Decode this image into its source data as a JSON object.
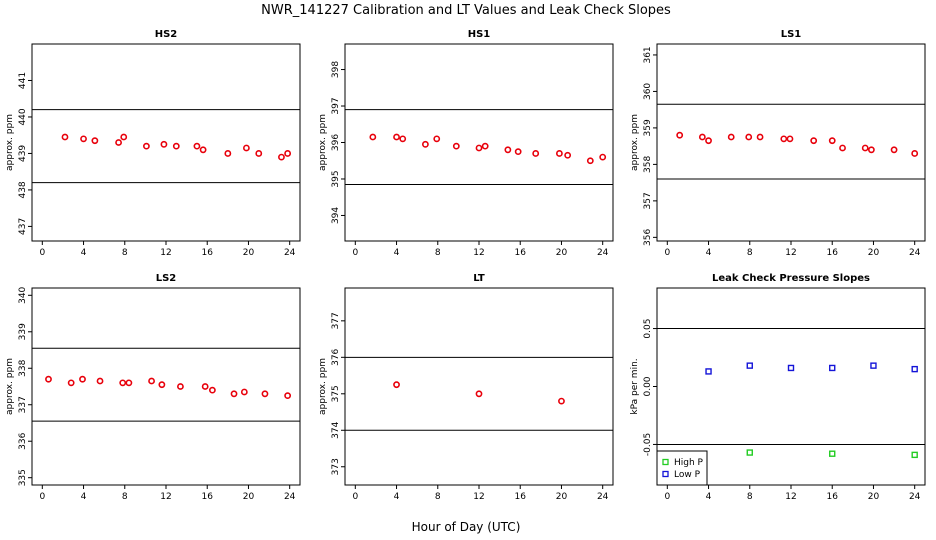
{
  "title": "NWR_141227  Calibration and LT Values and Leak Check Slopes",
  "xlabel": "Hour of Day (UTC)",
  "chart_data": [
    {
      "type": "scatter",
      "title": "HS2",
      "xlabel": "",
      "ylabel": "approx. ppm",
      "xlim": [
        -1,
        25
      ],
      "ylim": [
        436.6,
        442.0
      ],
      "x_ticks": [
        0,
        4,
        8,
        12,
        16,
        20,
        24
      ],
      "x_tick_labels": [
        "0",
        "4",
        "8",
        "12",
        "16",
        "20",
        "24"
      ],
      "y_ticks": [
        437,
        438,
        439,
        440,
        441
      ],
      "y_tick_labels": [
        "437",
        "438",
        "439",
        "440",
        "441"
      ],
      "reference_lines": [
        440.2,
        438.2
      ],
      "color": "#e8000b",
      "series": [
        {
          "x": [
            2.2,
            4.0,
            5.1,
            7.4,
            7.9,
            10.1,
            11.8,
            13.0,
            15.0,
            15.6,
            18.0,
            19.8,
            21.0,
            23.2,
            23.8
          ],
          "y": [
            439.45,
            439.4,
            439.35,
            439.3,
            439.45,
            439.2,
            439.25,
            439.2,
            439.2,
            439.1,
            439.0,
            439.15,
            439.0,
            438.9,
            439.0
          ]
        }
      ]
    },
    {
      "type": "scatter",
      "title": "HS1",
      "xlabel": "",
      "ylabel": "approx. ppm",
      "xlim": [
        -1,
        25
      ],
      "ylim": [
        393.3,
        398.7
      ],
      "x_ticks": [
        0,
        4,
        8,
        12,
        16,
        20,
        24
      ],
      "x_tick_labels": [
        "0",
        "4",
        "8",
        "12",
        "16",
        "20",
        "24"
      ],
      "y_ticks": [
        394,
        395,
        396,
        397,
        398
      ],
      "y_tick_labels": [
        "394",
        "395",
        "396",
        "397",
        "398"
      ],
      "reference_lines": [
        396.9,
        394.85
      ],
      "color": "#e8000b",
      "series": [
        {
          "x": [
            1.7,
            4.0,
            4.6,
            6.8,
            7.9,
            9.8,
            12.0,
            12.6,
            14.8,
            15.8,
            17.5,
            19.8,
            20.6,
            22.8,
            24.0
          ],
          "y": [
            396.15,
            396.15,
            396.1,
            395.95,
            396.1,
            395.9,
            395.85,
            395.9,
            395.8,
            395.75,
            395.7,
            395.7,
            395.65,
            395.5,
            395.6
          ]
        }
      ]
    },
    {
      "type": "scatter",
      "title": "LS1",
      "xlabel": "",
      "ylabel": "approx. ppm",
      "xlim": [
        -1,
        25
      ],
      "ylim": [
        355.9,
        361.3
      ],
      "x_ticks": [
        0,
        4,
        8,
        12,
        16,
        20,
        24
      ],
      "x_tick_labels": [
        "0",
        "4",
        "8",
        "12",
        "16",
        "20",
        "24"
      ],
      "y_ticks": [
        356,
        357,
        358,
        359,
        360,
        361
      ],
      "y_tick_labels": [
        "356",
        "357",
        "358",
        "359",
        "360",
        "361"
      ],
      "reference_lines": [
        359.65,
        357.6
      ],
      "color": "#e8000b",
      "series": [
        {
          "x": [
            1.2,
            3.4,
            4.0,
            6.2,
            7.9,
            9.0,
            11.3,
            11.9,
            14.2,
            16.0,
            17.0,
            19.2,
            19.8,
            22.0,
            24.0
          ],
          "y": [
            358.8,
            358.75,
            358.65,
            358.75,
            358.75,
            358.75,
            358.7,
            358.7,
            358.65,
            358.65,
            358.45,
            358.45,
            358.4,
            358.4,
            358.3
          ]
        }
      ]
    },
    {
      "type": "scatter",
      "title": "LS2",
      "xlabel": "",
      "ylabel": "approx. ppm",
      "xlim": [
        -1,
        25
      ],
      "ylim": [
        334.8,
        340.2
      ],
      "x_ticks": [
        0,
        4,
        8,
        12,
        16,
        20,
        24
      ],
      "x_tick_labels": [
        "0",
        "4",
        "8",
        "12",
        "16",
        "20",
        "24"
      ],
      "y_ticks": [
        335,
        336,
        337,
        338,
        339,
        340
      ],
      "y_tick_labels": [
        "335",
        "336",
        "337",
        "338",
        "339",
        "340"
      ],
      "reference_lines": [
        338.55,
        336.55
      ],
      "color": "#e8000b",
      "series": [
        {
          "x": [
            0.6,
            2.8,
            3.9,
            5.6,
            7.8,
            8.4,
            10.6,
            11.6,
            13.4,
            15.8,
            16.5,
            18.6,
            19.6,
            21.6,
            23.8
          ],
          "y": [
            337.7,
            337.6,
            337.7,
            337.65,
            337.6,
            337.6,
            337.65,
            337.55,
            337.5,
            337.5,
            337.4,
            337.3,
            337.35,
            337.3,
            337.25
          ]
        }
      ]
    },
    {
      "type": "scatter",
      "title": "LT",
      "xlabel": "",
      "ylabel": "approx. ppm",
      "xlim": [
        -1,
        25
      ],
      "ylim": [
        372.5,
        377.9
      ],
      "x_ticks": [
        0,
        4,
        8,
        12,
        16,
        20,
        24
      ],
      "x_tick_labels": [
        "0",
        "4",
        "8",
        "12",
        "16",
        "20",
        "24"
      ],
      "y_ticks": [
        373,
        374,
        375,
        376,
        377
      ],
      "y_tick_labels": [
        "373",
        "374",
        "375",
        "376",
        "377"
      ],
      "reference_lines": [
        376.0,
        374.0
      ],
      "color": "#e8000b",
      "series": [
        {
          "x": [
            4.0,
            12.0,
            20.0
          ],
          "y": [
            375.25,
            375.0,
            374.8
          ]
        }
      ]
    },
    {
      "type": "scatter",
      "title": "Leak Check Pressure Slopes",
      "xlabel": "",
      "ylabel": "kPa per min.",
      "xlim": [
        -1,
        25
      ],
      "ylim": [
        -0.085,
        0.085
      ],
      "x_ticks": [
        0,
        4,
        8,
        12,
        16,
        20,
        24
      ],
      "x_tick_labels": [
        "0",
        "4",
        "8",
        "12",
        "16",
        "20",
        "24"
      ],
      "y_ticks": [
        -0.05,
        0.0,
        0.05
      ],
      "y_tick_labels": [
        "-0.05",
        "0.00",
        "0.05"
      ],
      "reference_lines": [
        0.05,
        -0.05
      ],
      "legend": {
        "position": "bottom-left",
        "entries": [
          {
            "label": "High P",
            "color": "#22cc22"
          },
          {
            "label": "Low P",
            "color": "#1414d8"
          }
        ]
      },
      "series": [
        {
          "name": "High P",
          "color": "#22cc22",
          "x": [
            8.0,
            16.0,
            24.0
          ],
          "y": [
            -0.057,
            -0.058,
            -0.059
          ]
        },
        {
          "name": "Low P",
          "color": "#1414d8",
          "x": [
            4.0,
            8.0,
            12.0,
            16.0,
            20.0,
            24.0
          ],
          "y": [
            0.013,
            0.018,
            0.016,
            0.016,
            0.018,
            0.015
          ]
        }
      ]
    }
  ]
}
